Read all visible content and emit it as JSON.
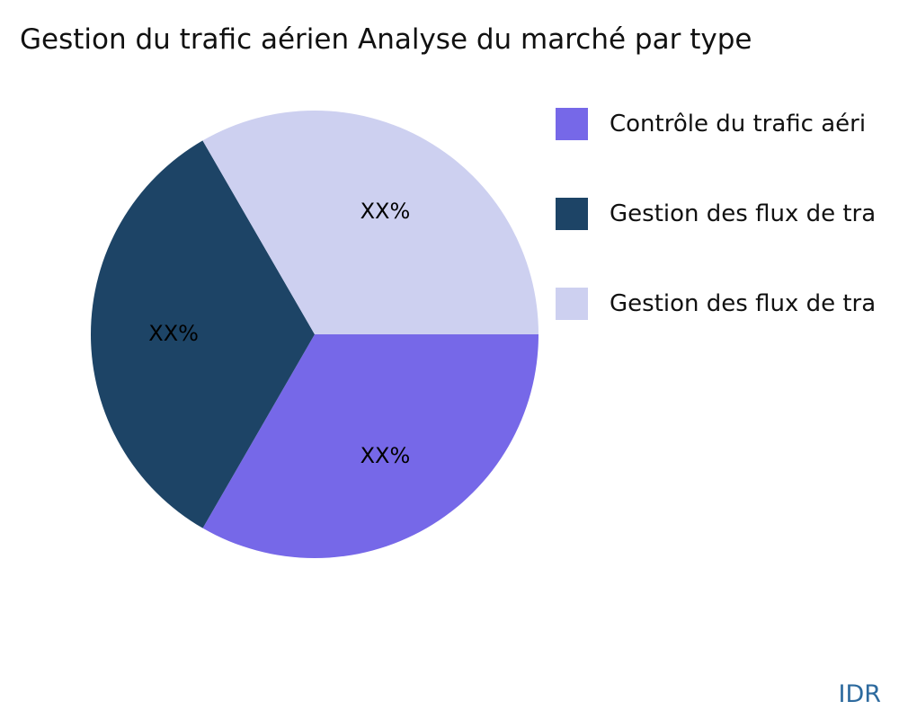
{
  "title": "Gestion du trafic aérien Analyse du marché par type",
  "footer": {
    "brand": "IDR"
  },
  "chart_data": {
    "type": "pie",
    "title": "Gestion du trafic aérien Analyse du marché par type",
    "legend_position": "right",
    "start_angle_deg": 0,
    "direction": "clockwise",
    "slices": [
      {
        "label": "Contrôle du trafic aéri",
        "label_truncated": true,
        "value": 33.33,
        "display_value": "XX%",
        "color": "#7668E8"
      },
      {
        "label": "Gestion des flux de tra",
        "label_truncated": true,
        "value": 33.33,
        "display_value": "XX%",
        "color": "#1D4466"
      },
      {
        "label": "Gestion des flux de tra",
        "label_truncated": true,
        "value": 33.34,
        "display_value": "XX%",
        "color": "#CDD0F0"
      }
    ]
  }
}
